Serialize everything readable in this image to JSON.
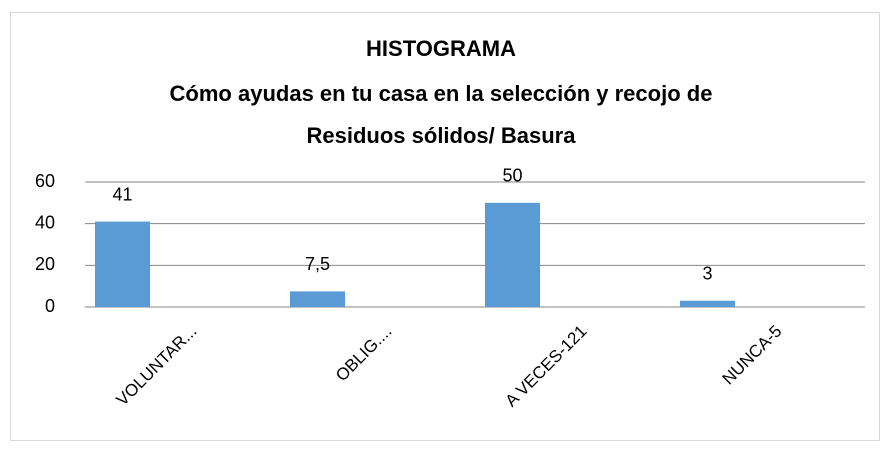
{
  "chart_data": {
    "type": "bar",
    "title": [
      "HISTOGRAMA",
      "Cómo ayudas en tu casa en la selección y recojo de",
      "Residuos sólidos/ Basura"
    ],
    "categories": [
      "VOLUNTAR...",
      "OBLIG....",
      "A VECES-121",
      "NUNCA-5"
    ],
    "values": [
      41,
      7.5,
      50,
      3
    ],
    "value_labels": [
      "41",
      "7,5",
      "50",
      "3"
    ],
    "color": "#5b9bd5",
    "ylim": [
      0,
      60
    ],
    "yticks": [
      0,
      20,
      40,
      60
    ],
    "grid": true
  }
}
